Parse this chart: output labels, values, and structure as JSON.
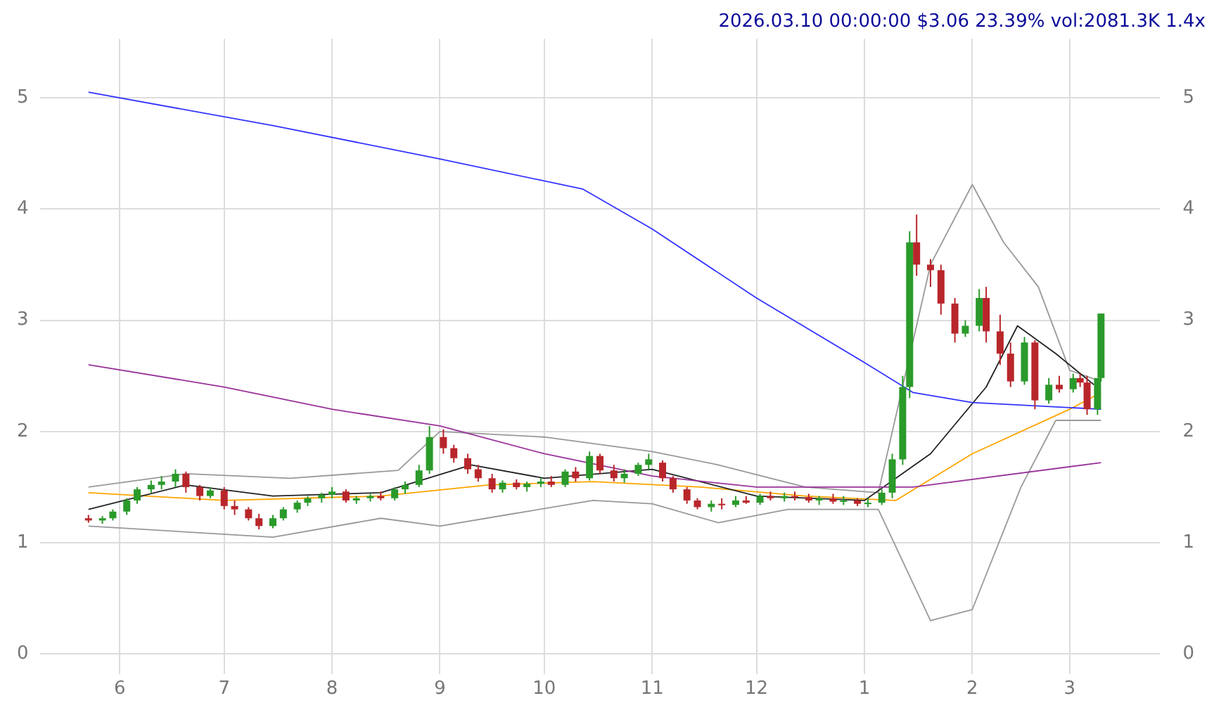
{
  "chart_data": {
    "type": "candlestick",
    "title": "2026.03.10 00:00:00 $3.06 23.39% vol:2081.3K 1.4x",
    "x": [
      "2025-05-23",
      "2025-05-27",
      "2025-05-30",
      "2025-06-03",
      "2025-06-06",
      "2025-06-10",
      "2025-06-13",
      "2025-06-17",
      "2025-06-20",
      "2025-06-24",
      "2025-06-27",
      "2025-07-01",
      "2025-07-04",
      "2025-07-08",
      "2025-07-11",
      "2025-07-15",
      "2025-07-18",
      "2025-07-22",
      "2025-07-25",
      "2025-07-29",
      "2025-08-01",
      "2025-08-05",
      "2025-08-08",
      "2025-08-12",
      "2025-08-15",
      "2025-08-19",
      "2025-08-22",
      "2025-08-26",
      "2025-08-29",
      "2025-09-02",
      "2025-09-05",
      "2025-09-09",
      "2025-09-12",
      "2025-09-16",
      "2025-09-19",
      "2025-09-23",
      "2025-09-26",
      "2025-09-30",
      "2025-10-03",
      "2025-10-07",
      "2025-10-10",
      "2025-10-14",
      "2025-10-17",
      "2025-10-21",
      "2025-10-24",
      "2025-10-28",
      "2025-10-31",
      "2025-11-04",
      "2025-11-07",
      "2025-11-11",
      "2025-11-14",
      "2025-11-18",
      "2025-11-21",
      "2025-11-25",
      "2025-11-28",
      "2025-12-02",
      "2025-12-05",
      "2025-12-09",
      "2025-12-12",
      "2025-12-16",
      "2025-12-19",
      "2025-12-23",
      "2025-12-26",
      "2025-12-30",
      "2026-01-02",
      "2026-01-06",
      "2026-01-09",
      "2026-01-12",
      "2026-01-14",
      "2026-01-16",
      "2026-01-20",
      "2026-01-23",
      "2026-01-27",
      "2026-01-30",
      "2026-02-03",
      "2026-02-05",
      "2026-02-09",
      "2026-02-12",
      "2026-02-16",
      "2026-02-19",
      "2026-02-23",
      "2026-02-26",
      "2026-03-02",
      "2026-03-04",
      "2026-03-06",
      "2026-03-09",
      "2026-03-10"
    ],
    "ohlc": [
      [
        1.22,
        1.25,
        1.18,
        1.2
      ],
      [
        1.2,
        1.24,
        1.17,
        1.22
      ],
      [
        1.22,
        1.3,
        1.2,
        1.28
      ],
      [
        1.28,
        1.4,
        1.25,
        1.38
      ],
      [
        1.38,
        1.5,
        1.35,
        1.48
      ],
      [
        1.48,
        1.56,
        1.45,
        1.52
      ],
      [
        1.52,
        1.6,
        1.48,
        1.55
      ],
      [
        1.55,
        1.66,
        1.5,
        1.62
      ],
      [
        1.62,
        1.64,
        1.45,
        1.5
      ],
      [
        1.5,
        1.52,
        1.38,
        1.42
      ],
      [
        1.42,
        1.5,
        1.4,
        1.47
      ],
      [
        1.47,
        1.5,
        1.3,
        1.33
      ],
      [
        1.33,
        1.38,
        1.25,
        1.3
      ],
      [
        1.3,
        1.32,
        1.2,
        1.22
      ],
      [
        1.22,
        1.26,
        1.12,
        1.15
      ],
      [
        1.15,
        1.25,
        1.13,
        1.22
      ],
      [
        1.22,
        1.32,
        1.2,
        1.3
      ],
      [
        1.3,
        1.38,
        1.27,
        1.36
      ],
      [
        1.36,
        1.42,
        1.33,
        1.4
      ],
      [
        1.4,
        1.45,
        1.36,
        1.43
      ],
      [
        1.43,
        1.5,
        1.4,
        1.46
      ],
      [
        1.46,
        1.48,
        1.36,
        1.38
      ],
      [
        1.38,
        1.42,
        1.35,
        1.4
      ],
      [
        1.4,
        1.44,
        1.37,
        1.42
      ],
      [
        1.42,
        1.46,
        1.38,
        1.4
      ],
      [
        1.4,
        1.5,
        1.38,
        1.48
      ],
      [
        1.48,
        1.55,
        1.44,
        1.52
      ],
      [
        1.52,
        1.7,
        1.5,
        1.65
      ],
      [
        1.65,
        2.05,
        1.62,
        1.95
      ],
      [
        1.95,
        2.02,
        1.8,
        1.85
      ],
      [
        1.85,
        1.88,
        1.72,
        1.76
      ],
      [
        1.76,
        1.8,
        1.62,
        1.66
      ],
      [
        1.66,
        1.7,
        1.55,
        1.58
      ],
      [
        1.58,
        1.62,
        1.45,
        1.48
      ],
      [
        1.48,
        1.56,
        1.45,
        1.54
      ],
      [
        1.54,
        1.57,
        1.48,
        1.5
      ],
      [
        1.5,
        1.55,
        1.46,
        1.53
      ],
      [
        1.53,
        1.58,
        1.5,
        1.55
      ],
      [
        1.55,
        1.6,
        1.5,
        1.52
      ],
      [
        1.52,
        1.66,
        1.5,
        1.64
      ],
      [
        1.64,
        1.68,
        1.55,
        1.58
      ],
      [
        1.58,
        1.82,
        1.56,
        1.78
      ],
      [
        1.78,
        1.8,
        1.62,
        1.65
      ],
      [
        1.65,
        1.7,
        1.55,
        1.58
      ],
      [
        1.58,
        1.66,
        1.54,
        1.62
      ],
      [
        1.62,
        1.72,
        1.6,
        1.7
      ],
      [
        1.7,
        1.8,
        1.66,
        1.75
      ],
      [
        1.72,
        1.74,
        1.55,
        1.58
      ],
      [
        1.58,
        1.6,
        1.45,
        1.48
      ],
      [
        1.48,
        1.5,
        1.35,
        1.38
      ],
      [
        1.38,
        1.4,
        1.3,
        1.32
      ],
      [
        1.32,
        1.38,
        1.28,
        1.35
      ],
      [
        1.35,
        1.4,
        1.3,
        1.34
      ],
      [
        1.34,
        1.42,
        1.32,
        1.38
      ],
      [
        1.38,
        1.42,
        1.35,
        1.36
      ],
      [
        1.36,
        1.44,
        1.34,
        1.42
      ],
      [
        1.42,
        1.46,
        1.38,
        1.4
      ],
      [
        1.4,
        1.45,
        1.37,
        1.42
      ],
      [
        1.42,
        1.46,
        1.38,
        1.41
      ],
      [
        1.41,
        1.44,
        1.36,
        1.38
      ],
      [
        1.38,
        1.42,
        1.34,
        1.4
      ],
      [
        1.4,
        1.44,
        1.35,
        1.37
      ],
      [
        1.37,
        1.42,
        1.34,
        1.38
      ],
      [
        1.38,
        1.4,
        1.33,
        1.35
      ],
      [
        1.35,
        1.4,
        1.32,
        1.36
      ],
      [
        1.36,
        1.48,
        1.34,
        1.45
      ],
      [
        1.45,
        1.8,
        1.4,
        1.75
      ],
      [
        1.75,
        2.5,
        1.7,
        2.4
      ],
      [
        2.4,
        3.8,
        2.3,
        3.7
      ],
      [
        3.7,
        3.95,
        3.4,
        3.5
      ],
      [
        3.5,
        3.55,
        3.3,
        3.45
      ],
      [
        3.45,
        3.5,
        3.05,
        3.15
      ],
      [
        3.15,
        3.2,
        2.8,
        2.88
      ],
      [
        2.88,
        3.0,
        2.85,
        2.95
      ],
      [
        2.95,
        3.28,
        2.9,
        3.2
      ],
      [
        3.2,
        3.3,
        2.8,
        2.9
      ],
      [
        2.9,
        3.05,
        2.6,
        2.7
      ],
      [
        2.7,
        2.8,
        2.4,
        2.45
      ],
      [
        2.45,
        2.85,
        2.42,
        2.8
      ],
      [
        2.8,
        2.82,
        2.2,
        2.28
      ],
      [
        2.28,
        2.48,
        2.25,
        2.42
      ],
      [
        2.42,
        2.5,
        2.35,
        2.38
      ],
      [
        2.38,
        2.52,
        2.35,
        2.48
      ],
      [
        2.48,
        2.52,
        2.4,
        2.44
      ],
      [
        2.44,
        2.5,
        2.15,
        2.2
      ],
      [
        2.2,
        2.48,
        2.15,
        2.48
      ],
      [
        2.48,
        3.06,
        2.45,
        3.06
      ]
    ],
    "series": [
      {
        "type": "line",
        "color": "#3333ff",
        "x": [
          "2025-05-23",
          "2025-07-15",
          "2025-09-01",
          "2025-10-12",
          "2025-11-01",
          "2025-12-01",
          "2026-01-01",
          "2026-01-15",
          "2026-02-01",
          "2026-03-10"
        ],
        "values": [
          5.05,
          4.75,
          4.45,
          4.18,
          3.82,
          3.2,
          2.62,
          2.35,
          2.26,
          2.2
        ]
      },
      {
        "type": "line",
        "color": "#993399",
        "x": [
          "2025-05-23",
          "2025-07-01",
          "2025-08-01",
          "2025-09-01",
          "2025-10-01",
          "2025-11-01",
          "2025-12-01",
          "2026-01-15",
          "2026-03-10"
        ],
        "values": [
          2.6,
          2.4,
          2.2,
          2.05,
          1.8,
          1.6,
          1.5,
          1.5,
          1.72
        ]
      },
      {
        "type": "line",
        "color": "#222222",
        "x": [
          "2025-05-23",
          "2025-06-20",
          "2025-07-15",
          "2025-08-15",
          "2025-09-10",
          "2025-10-01",
          "2025-11-01",
          "2025-12-01",
          "2026-01-01",
          "2026-01-20",
          "2026-02-05",
          "2026-02-14",
          "2026-02-25",
          "2026-03-08"
        ],
        "values": [
          1.3,
          1.52,
          1.42,
          1.45,
          1.7,
          1.58,
          1.66,
          1.42,
          1.38,
          1.8,
          2.4,
          2.95,
          2.7,
          2.42
        ]
      },
      {
        "type": "line",
        "color": "#ffa500",
        "x": [
          "2025-05-23",
          "2025-07-01",
          "2025-08-15",
          "2025-09-15",
          "2025-10-15",
          "2025-11-15",
          "2025-12-15",
          "2026-01-10",
          "2026-02-01",
          "2026-03-01",
          "2026-03-10"
        ],
        "values": [
          1.45,
          1.38,
          1.42,
          1.52,
          1.55,
          1.5,
          1.42,
          1.38,
          1.8,
          2.2,
          2.35
        ]
      },
      {
        "type": "line",
        "color": "#999999",
        "x": [
          "2025-05-23",
          "2025-06-20",
          "2025-07-20",
          "2025-08-20",
          "2025-09-01",
          "2025-10-01",
          "2025-11-01",
          "2025-11-20",
          "2025-12-15",
          "2026-01-05",
          "2026-01-20",
          "2026-02-01",
          "2026-02-10",
          "2026-02-20",
          "2026-03-01",
          "2026-03-10"
        ],
        "values": [
          1.5,
          1.62,
          1.58,
          1.65,
          2.0,
          1.95,
          1.82,
          1.7,
          1.5,
          1.45,
          3.5,
          4.22,
          3.7,
          3.3,
          2.55,
          2.45
        ]
      },
      {
        "type": "line",
        "color": "#999999",
        "x": [
          "2025-05-23",
          "2025-07-15",
          "2025-08-15",
          "2025-09-01",
          "2025-09-20",
          "2025-10-15",
          "2025-11-01",
          "2025-11-20",
          "2025-12-10",
          "2026-01-05",
          "2026-01-20",
          "2026-02-01",
          "2026-02-15",
          "2026-02-25",
          "2026-03-10"
        ],
        "values": [
          1.15,
          1.05,
          1.22,
          1.15,
          1.25,
          1.38,
          1.35,
          1.18,
          1.3,
          1.3,
          0.3,
          0.4,
          1.5,
          2.1,
          2.1
        ]
      }
    ],
    "xlim": [
      "2025-05-09",
      "2026-03-27"
    ],
    "xticks": [
      {
        "value": "2025-06",
        "label": "6"
      },
      {
        "value": "2025-07",
        "label": "7"
      },
      {
        "value": "2025-08",
        "label": "8"
      },
      {
        "value": "2025-09",
        "label": "9"
      },
      {
        "value": "2025-10",
        "label": "10"
      },
      {
        "value": "2025-11",
        "label": "11"
      },
      {
        "value": "2025-12",
        "label": "12"
      },
      {
        "value": "2026-01",
        "label": "1"
      },
      {
        "value": "2026-02",
        "label": "2"
      },
      {
        "value": "2026-03",
        "label": "3"
      }
    ],
    "ylim": [
      -0.18,
      5.53
    ],
    "yticks": [
      0,
      1,
      2,
      3,
      4,
      5
    ],
    "y2lim": [
      -0.18,
      5.53
    ],
    "y2ticks": [
      0,
      1,
      2,
      3,
      4,
      5
    ],
    "grid": true,
    "legend": false
  }
}
